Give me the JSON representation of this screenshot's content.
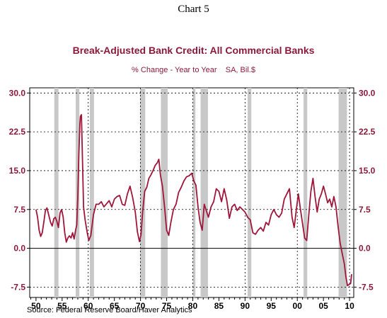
{
  "page": {
    "heading": "Chart 5"
  },
  "footer": {
    "source": "Source:  Federal Reserve Board/Haver Analytics"
  },
  "colors": {
    "series": "#a0163a",
    "text": "#8b1a3a",
    "recession": "#c8c8c8",
    "zero_line": "#000000"
  },
  "chart_data": {
    "type": "line",
    "title": "Break-Adjusted Bank Credit: All Commercial Banks",
    "subtitle": "% Change - Year to Year    SA, Bil.$",
    "ylim": [
      -9.5,
      31
    ],
    "xlim": [
      1948.8,
      2010.8
    ],
    "y_ticks": [
      30.0,
      22.5,
      15.0,
      7.5,
      0.0,
      -7.5
    ],
    "y_tick_labels": [
      "30.0",
      "22.5",
      "15.0",
      "7.5",
      "0.0",
      "-7.5"
    ],
    "x_ticks": [
      1950,
      1955,
      1960,
      1965,
      1970,
      1975,
      1980,
      1985,
      1990,
      1995,
      2000,
      2005,
      2010
    ],
    "x_tick_labels": [
      "50",
      "55",
      "60",
      "65",
      "70",
      "75",
      "80",
      "85",
      "90",
      "95",
      "00",
      "05",
      "10"
    ],
    "decade_gridlines": [
      1960,
      1970,
      1980,
      1990,
      2000,
      2010
    ],
    "grid": true,
    "recession_bands": [
      [
        1953.5,
        1954.3
      ],
      [
        1957.6,
        1958.3
      ],
      [
        1960.3,
        1961.1
      ],
      [
        1969.9,
        1970.9
      ],
      [
        1973.9,
        1975.2
      ],
      [
        1980.0,
        1980.5
      ],
      [
        1981.5,
        1982.9
      ],
      [
        1990.5,
        1991.2
      ],
      [
        2001.2,
        2001.9
      ],
      [
        2007.9,
        2009.5
      ]
    ],
    "series": [
      {
        "x": [
          1950.0,
          1950.3,
          1950.6,
          1950.9,
          1951.2,
          1951.5,
          1951.8,
          1952.1,
          1952.5,
          1952.8,
          1953.1,
          1953.4,
          1953.7,
          1954.0,
          1954.3,
          1954.6,
          1954.9,
          1955.2,
          1955.5,
          1955.8,
          1956.1,
          1956.4,
          1956.7,
          1957.0,
          1957.3,
          1957.6,
          1957.8,
          1958.0,
          1958.2,
          1958.4,
          1958.5,
          1958.7,
          1958.9,
          1959.1,
          1959.4,
          1959.8,
          1960.1,
          1960.5,
          1961.0,
          1961.5,
          1962.0,
          1962.5,
          1963.0,
          1963.5,
          1964.0,
          1964.5,
          1965.0,
          1965.5,
          1966.0,
          1966.5,
          1967.0,
          1967.5,
          1968.0,
          1968.5,
          1969.0,
          1969.4,
          1969.8,
          1970.1,
          1970.4,
          1970.8,
          1971.2,
          1971.6,
          1972.0,
          1972.4,
          1972.8,
          1973.2,
          1973.5,
          1973.8,
          1974.2,
          1974.6,
          1975.0,
          1975.4,
          1975.8,
          1976.3,
          1976.8,
          1977.3,
          1977.8,
          1978.3,
          1978.8,
          1979.3,
          1979.8,
          1980.2,
          1980.6,
          1981.0,
          1981.4,
          1981.8,
          1982.2,
          1982.6,
          1983.0,
          1983.5,
          1984.0,
          1984.5,
          1985.0,
          1985.5,
          1986.0,
          1986.5,
          1987.0,
          1987.5,
          1988.0,
          1988.5,
          1989.0,
          1989.5,
          1990.0,
          1990.5,
          1991.0,
          1991.5,
          1992.0,
          1992.5,
          1993.0,
          1993.5,
          1994.0,
          1994.5,
          1995.0,
          1995.5,
          1996.0,
          1996.5,
          1997.0,
          1997.5,
          1998.0,
          1998.5,
          1999.0,
          1999.4,
          1999.8,
          2000.2,
          2000.6,
          2001.0,
          2001.4,
          2001.8,
          2002.2,
          2002.6,
          2003.0,
          2003.4,
          2003.8,
          2004.2,
          2004.6,
          2005.0,
          2005.4,
          2005.8,
          2006.2,
          2006.6,
          2007.0,
          2007.4,
          2007.8,
          2008.2,
          2008.6,
          2009.0,
          2009.3,
          2009.6,
          2009.9,
          2010.2,
          2010.4
        ],
        "y": [
          7.5,
          6.0,
          3.5,
          2.3,
          3.0,
          5.0,
          7.3,
          7.8,
          6.2,
          5.0,
          4.3,
          5.7,
          6.0,
          5.2,
          4.0,
          6.8,
          7.5,
          6.0,
          3.0,
          1.2,
          2.0,
          2.4,
          2.0,
          3.0,
          1.8,
          3.6,
          4.5,
          10.0,
          18.0,
          24.0,
          25.5,
          25.8,
          17.0,
          8.0,
          5.5,
          3.0,
          1.5,
          2.5,
          6.5,
          8.5,
          8.5,
          9.0,
          8.0,
          8.6,
          9.2,
          8.0,
          9.5,
          10.0,
          10.2,
          8.5,
          8.3,
          10.5,
          12.0,
          9.8,
          7.0,
          3.2,
          1.3,
          2.6,
          7.0,
          11.0,
          11.8,
          13.5,
          14.2,
          15.0,
          16.0,
          16.5,
          17.2,
          14.2,
          12.0,
          8.0,
          3.5,
          2.5,
          5.0,
          7.5,
          8.5,
          10.8,
          11.8,
          13.0,
          13.8,
          14.0,
          14.5,
          13.0,
          12.2,
          8.0,
          5.0,
          3.5,
          8.5,
          7.2,
          6.0,
          8.0,
          9.0,
          11.5,
          11.0,
          9.0,
          11.5,
          9.3,
          5.8,
          8.0,
          8.5,
          7.3,
          8.0,
          7.5,
          7.0,
          6.0,
          5.5,
          3.0,
          2.7,
          3.5,
          4.0,
          3.3,
          5.0,
          4.5,
          6.5,
          7.5,
          6.5,
          6.0,
          6.8,
          9.5,
          10.5,
          11.5,
          6.0,
          4.0,
          7.3,
          10.5,
          7.5,
          4.8,
          2.0,
          1.5,
          6.5,
          11.0,
          13.5,
          10.0,
          7.0,
          9.5,
          10.5,
          12.0,
          10.5,
          8.8,
          9.5,
          8.0,
          10.0,
          8.0,
          4.3,
          1.0,
          -1.0,
          -3.0,
          -5.5,
          -7.2,
          -7.0,
          -6.8,
          -5.0
        ]
      }
    ]
  }
}
